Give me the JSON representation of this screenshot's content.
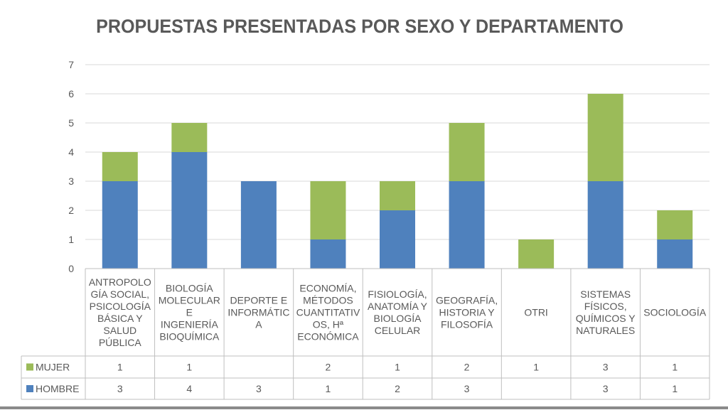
{
  "chart_data": {
    "type": "bar",
    "stacked": true,
    "title": "PROPUESTAS PRESENTADAS POR SEXO Y DEPARTAMENTO",
    "categories": [
      [
        "ANTROPOLO",
        "GÍA SOCIAL,",
        "PSICOLOGÍA",
        "BÁSICA Y",
        "SALUD",
        "PÚBLICA"
      ],
      [
        "BIOLOGÍA",
        "MOLECULAR",
        "E",
        "INGENIERÍA",
        "BIOQUÍMICA"
      ],
      [
        "DEPORTE E",
        "INFORMÁTIC",
        "A"
      ],
      [
        "ECONOMÍA,",
        "MÉTODOS",
        "CUANTITATIV",
        "OS, Hª",
        "ECONÓMICA"
      ],
      [
        "FISIOLOGÍA,",
        "ANATOMÍA Y",
        "BIOLOGÍA",
        "CELULAR"
      ],
      [
        "GEOGRAFÍA,",
        "HISTORIA Y",
        "FILOSOFÍA"
      ],
      [
        "OTRI"
      ],
      [
        "SISTEMAS",
        "FÍSICOS,",
        "QUÍMICOS Y",
        "NATURALES"
      ],
      [
        "SOCIOLOGÍA"
      ]
    ],
    "series": [
      {
        "name": "HOMBRE",
        "color": "#4f81bd",
        "values": [
          3,
          4,
          3,
          1,
          2,
          3,
          null,
          3,
          1
        ]
      },
      {
        "name": "MUJER",
        "color": "#9bbb59",
        "values": [
          1,
          1,
          null,
          2,
          1,
          2,
          1,
          3,
          1
        ]
      }
    ],
    "table_rows_order": [
      "MUJER",
      "HOMBRE"
    ],
    "ylim": [
      0,
      7
    ],
    "yticks": [
      0,
      1,
      2,
      3,
      4,
      5,
      6,
      7
    ],
    "grid": true,
    "legend": "data-table"
  }
}
